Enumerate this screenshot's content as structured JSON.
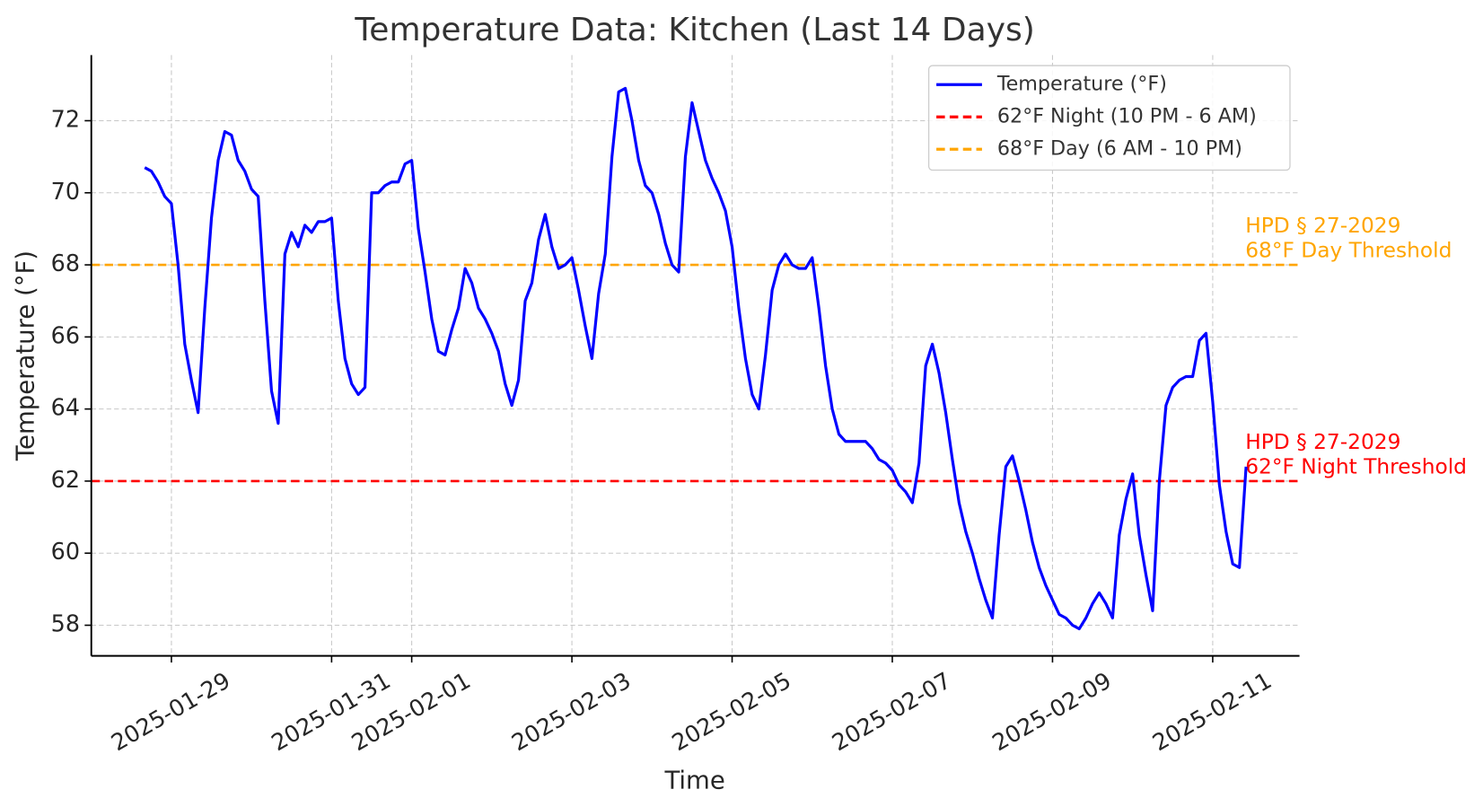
{
  "chart_data": {
    "type": "line",
    "title": "Temperature Data: Kitchen (Last 14 Days)",
    "xlabel": "Time",
    "ylabel": "Temperature (°F)",
    "x": [
      "2025-01-28 16:00",
      "2025-01-28 18:00",
      "2025-01-28 20:00",
      "2025-01-28 22:00",
      "2025-01-29 00:00",
      "2025-01-29 02:00",
      "2025-01-29 04:00",
      "2025-01-29 06:00",
      "2025-01-29 08:00",
      "2025-01-29 10:00",
      "2025-01-29 12:00",
      "2025-01-29 14:00",
      "2025-01-29 16:00",
      "2025-01-29 18:00",
      "2025-01-29 20:00",
      "2025-01-29 22:00",
      "2025-01-30 00:00",
      "2025-01-30 02:00",
      "2025-01-30 04:00",
      "2025-01-30 06:00",
      "2025-01-30 08:00",
      "2025-01-30 10:00",
      "2025-01-30 12:00",
      "2025-01-30 14:00",
      "2025-01-30 16:00",
      "2025-01-30 18:00",
      "2025-01-30 20:00",
      "2025-01-30 22:00",
      "2025-01-31 00:00",
      "2025-01-31 02:00",
      "2025-01-31 04:00",
      "2025-01-31 06:00",
      "2025-01-31 08:00",
      "2025-01-31 10:00",
      "2025-01-31 12:00",
      "2025-01-31 14:00",
      "2025-01-31 16:00",
      "2025-01-31 18:00",
      "2025-01-31 20:00",
      "2025-01-31 22:00",
      "2025-02-01 00:00",
      "2025-02-01 02:00",
      "2025-02-01 04:00",
      "2025-02-01 06:00",
      "2025-02-01 08:00",
      "2025-02-01 10:00",
      "2025-02-01 12:00",
      "2025-02-01 14:00",
      "2025-02-01 16:00",
      "2025-02-01 18:00",
      "2025-02-01 20:00",
      "2025-02-01 22:00",
      "2025-02-02 00:00",
      "2025-02-02 02:00",
      "2025-02-02 04:00",
      "2025-02-02 06:00",
      "2025-02-02 08:00",
      "2025-02-02 10:00",
      "2025-02-02 12:00",
      "2025-02-02 14:00",
      "2025-02-02 16:00",
      "2025-02-02 18:00",
      "2025-02-02 20:00",
      "2025-02-02 22:00",
      "2025-02-03 00:00",
      "2025-02-03 02:00",
      "2025-02-03 04:00",
      "2025-02-03 06:00",
      "2025-02-03 08:00",
      "2025-02-03 10:00",
      "2025-02-03 12:00",
      "2025-02-03 14:00",
      "2025-02-03 16:00",
      "2025-02-03 18:00",
      "2025-02-03 20:00",
      "2025-02-03 22:00",
      "2025-02-04 00:00",
      "2025-02-04 02:00",
      "2025-02-04 04:00",
      "2025-02-04 06:00",
      "2025-02-04 08:00",
      "2025-02-04 10:00",
      "2025-02-04 12:00",
      "2025-02-04 14:00",
      "2025-02-04 16:00",
      "2025-02-04 18:00",
      "2025-02-04 20:00",
      "2025-02-04 22:00",
      "2025-02-05 00:00",
      "2025-02-05 02:00",
      "2025-02-05 04:00",
      "2025-02-05 06:00",
      "2025-02-05 08:00",
      "2025-02-05 10:00",
      "2025-02-05 12:00",
      "2025-02-05 14:00",
      "2025-02-05 16:00",
      "2025-02-05 18:00",
      "2025-02-05 20:00",
      "2025-02-05 22:00",
      "2025-02-06 00:00",
      "2025-02-06 02:00",
      "2025-02-06 04:00",
      "2025-02-06 06:00",
      "2025-02-06 08:00",
      "2025-02-06 10:00",
      "2025-02-06 12:00",
      "2025-02-06 14:00",
      "2025-02-06 16:00",
      "2025-02-06 18:00",
      "2025-02-06 20:00",
      "2025-02-06 22:00",
      "2025-02-07 00:00",
      "2025-02-07 02:00",
      "2025-02-07 04:00",
      "2025-02-07 06:00",
      "2025-02-07 08:00",
      "2025-02-07 10:00",
      "2025-02-07 12:00",
      "2025-02-07 14:00",
      "2025-02-07 16:00",
      "2025-02-07 18:00",
      "2025-02-07 20:00",
      "2025-02-07 22:00",
      "2025-02-08 00:00",
      "2025-02-08 02:00",
      "2025-02-08 04:00",
      "2025-02-08 06:00",
      "2025-02-08 08:00",
      "2025-02-08 10:00",
      "2025-02-08 12:00",
      "2025-02-08 14:00",
      "2025-02-08 16:00",
      "2025-02-08 18:00",
      "2025-02-08 20:00",
      "2025-02-08 22:00",
      "2025-02-09 00:00",
      "2025-02-09 02:00",
      "2025-02-09 04:00",
      "2025-02-09 06:00",
      "2025-02-09 08:00",
      "2025-02-09 10:00",
      "2025-02-09 12:00",
      "2025-02-09 14:00",
      "2025-02-09 16:00",
      "2025-02-09 18:00",
      "2025-02-09 20:00",
      "2025-02-09 22:00",
      "2025-02-10 00:00",
      "2025-02-10 02:00",
      "2025-02-10 04:00",
      "2025-02-10 06:00",
      "2025-02-10 08:00",
      "2025-02-10 10:00",
      "2025-02-10 12:00",
      "2025-02-10 14:00",
      "2025-02-10 16:00",
      "2025-02-10 18:00",
      "2025-02-10 20:00",
      "2025-02-10 22:00",
      "2025-02-11 00:00",
      "2025-02-11 02:00",
      "2025-02-11 04:00",
      "2025-02-11 06:00",
      "2025-02-11 08:00",
      "2025-02-11 10:00"
    ],
    "series": [
      {
        "name": "Temperature (°F)",
        "color": "#0000ff",
        "values": [
          70.7,
          70.6,
          70.3,
          69.9,
          69.7,
          68.0,
          65.8,
          64.8,
          63.9,
          66.8,
          69.3,
          70.9,
          71.7,
          71.6,
          70.9,
          70.6,
          70.1,
          69.9,
          67.0,
          64.5,
          63.6,
          68.3,
          68.9,
          68.5,
          69.1,
          68.9,
          69.2,
          69.2,
          69.3,
          67.0,
          65.4,
          64.7,
          64.4,
          64.6,
          70.0,
          70.0,
          70.2,
          70.3,
          70.3,
          70.8,
          70.9,
          69.0,
          67.8,
          66.5,
          65.6,
          65.5,
          66.2,
          66.8,
          67.9,
          67.5,
          66.8,
          66.5,
          66.1,
          65.6,
          64.7,
          64.1,
          64.8,
          67.0,
          67.5,
          68.7,
          69.4,
          68.5,
          67.9,
          68.0,
          68.2,
          67.3,
          66.3,
          65.4,
          67.2,
          68.3,
          71.0,
          72.8,
          72.9,
          72.0,
          70.9,
          70.2,
          70.0,
          69.4,
          68.6,
          68.0,
          67.8,
          71.0,
          72.5,
          71.7,
          70.9,
          70.4,
          70.0,
          69.5,
          68.5,
          66.8,
          65.4,
          64.4,
          64.0,
          65.5,
          67.3,
          68.0,
          68.3,
          68.0,
          67.9,
          67.9,
          68.2,
          66.8,
          65.2,
          64.0,
          63.3,
          63.1,
          63.1,
          63.1,
          63.1,
          62.9,
          62.6,
          62.5,
          62.3,
          61.9,
          61.7,
          61.4,
          62.5,
          65.2,
          65.8,
          65.0,
          63.9,
          62.6,
          61.4,
          60.6,
          60.0,
          59.3,
          58.7,
          58.2,
          60.5,
          62.4,
          62.7,
          62.0,
          61.2,
          60.3,
          59.6,
          59.1,
          58.7,
          58.3,
          58.2,
          58.0,
          57.9,
          58.2,
          58.6,
          58.9,
          58.6,
          58.2,
          60.5,
          61.5,
          62.2,
          60.5,
          59.4,
          58.4,
          62.0,
          64.1,
          64.6,
          64.8,
          64.9,
          64.9,
          65.9,
          66.1,
          64.2,
          61.9,
          60.6,
          59.7,
          59.6,
          62.4
        ]
      }
    ],
    "hlines": [
      {
        "value": 62,
        "label": "62°F Night (10 PM - 6 AM)",
        "color": "#ff0000",
        "note": [
          "HPD § 27-2029",
          "62°F Night Threshold"
        ]
      },
      {
        "value": 68,
        "label": "68°F Day (6 AM - 10 PM)",
        "color": "#ffa500",
        "note": [
          "HPD § 27-2029",
          "68°F Day Threshold"
        ]
      }
    ],
    "xlim": [
      "2025-01-28 00:00",
      "2025-02-12 02:00"
    ],
    "xticks": [
      "2025-01-29",
      "2025-01-31",
      "2025-02-01",
      "2025-02-03",
      "2025-02-05",
      "2025-02-07",
      "2025-02-09",
      "2025-02-11"
    ],
    "ylim": [
      57.15,
      73.82
    ],
    "yticks": [
      58,
      60,
      62,
      64,
      66,
      68,
      70,
      72
    ],
    "grid": true,
    "legend": "upper right"
  }
}
